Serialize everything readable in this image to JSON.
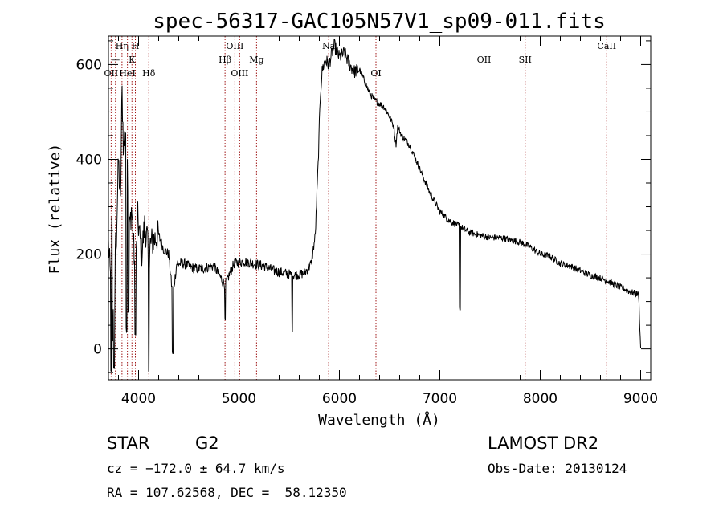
{
  "chart_data": {
    "type": "line",
    "title": "spec-56317-GAC105N57V1_sp09-011.fits",
    "xlabel": "Wavelength (Å)",
    "ylabel": "Flux (relative)",
    "xlim": [
      3700,
      9100
    ],
    "ylim": [
      -65,
      660
    ],
    "x_ticks": [
      4000,
      5000,
      6000,
      7000,
      8000,
      9000
    ],
    "x_tick_labels": [
      "4000",
      "5000",
      "6000",
      "7000",
      "8000",
      "9000"
    ],
    "y_ticks": [
      0,
      200,
      400,
      600
    ],
    "y_tick_labels": [
      "0",
      "200",
      "400",
      "600"
    ],
    "grid": false,
    "line_color": "#000000",
    "marker_color": "#a01818",
    "spectrum_anchors": [
      [
        3700,
        220
      ],
      [
        3720,
        150
      ],
      [
        3740,
        330
      ],
      [
        3760,
        200
      ],
      [
        3780,
        240
      ],
      [
        3800,
        400
      ],
      [
        3820,
        300
      ],
      [
        3835,
        550
      ],
      [
        3850,
        420
      ],
      [
        3870,
        470
      ],
      [
        3890,
        380
      ],
      [
        3910,
        250
      ],
      [
        3930,
        300
      ],
      [
        3950,
        220
      ],
      [
        3970,
        150
      ],
      [
        3990,
        280
      ],
      [
        4010,
        240
      ],
      [
        4030,
        200
      ],
      [
        4060,
        260
      ],
      [
        4090,
        230
      ],
      [
        4102,
        120
      ],
      [
        4115,
        220
      ],
      [
        4150,
        230
      ],
      [
        4200,
        240
      ],
      [
        4250,
        210
      ],
      [
        4300,
        200
      ],
      [
        4340,
        110
      ],
      [
        4380,
        180
      ],
      [
        4450,
        180
      ],
      [
        4550,
        170
      ],
      [
        4650,
        170
      ],
      [
        4750,
        175
      ],
      [
        4861,
        135
      ],
      [
        4950,
        180
      ],
      [
        5050,
        185
      ],
      [
        5150,
        180
      ],
      [
        5250,
        175
      ],
      [
        5350,
        165
      ],
      [
        5450,
        160
      ],
      [
        5550,
        155
      ],
      [
        5650,
        160
      ],
      [
        5720,
        180
      ],
      [
        5760,
        240
      ],
      [
        5790,
        400
      ],
      [
        5810,
        540
      ],
      [
        5830,
        590
      ],
      [
        5860,
        610
      ],
      [
        5893,
        600
      ],
      [
        5950,
        640
      ],
      [
        6000,
        615
      ],
      [
        6050,
        625
      ],
      [
        6100,
        600
      ],
      [
        6150,
        585
      ],
      [
        6200,
        590
      ],
      [
        6250,
        565
      ],
      [
        6300,
        540
      ],
      [
        6350,
        525
      ],
      [
        6450,
        510
      ],
      [
        6500,
        490
      ],
      [
        6540,
        470
      ],
      [
        6563,
        430
      ],
      [
        6580,
        470
      ],
      [
        6620,
        450
      ],
      [
        6700,
        430
      ],
      [
        6800,
        380
      ],
      [
        6900,
        330
      ],
      [
        7000,
        290
      ],
      [
        7100,
        270
      ],
      [
        7190,
        260
      ],
      [
        7300,
        245
      ],
      [
        7400,
        240
      ],
      [
        7500,
        235
      ],
      [
        7600,
        235
      ],
      [
        7700,
        230
      ],
      [
        7800,
        225
      ],
      [
        7900,
        215
      ],
      [
        8000,
        200
      ],
      [
        8100,
        195
      ],
      [
        8200,
        180
      ],
      [
        8300,
        175
      ],
      [
        8400,
        165
      ],
      [
        8500,
        155
      ],
      [
        8600,
        150
      ],
      [
        8700,
        140
      ],
      [
        8800,
        130
      ],
      [
        8900,
        120
      ],
      [
        8980,
        115
      ],
      [
        9000,
        0
      ]
    ],
    "spectrum_dips": [
      [
        3725,
        -50
      ],
      [
        3742,
        20
      ],
      [
        3748,
        80
      ],
      [
        3756,
        -40
      ],
      [
        3762,
        100
      ],
      [
        3880,
        40
      ],
      [
        3900,
        80
      ],
      [
        3968,
        30
      ],
      [
        4102,
        -45
      ],
      [
        4340,
        -10
      ],
      [
        4861,
        60
      ],
      [
        5530,
        40
      ],
      [
        7200,
        85
      ]
    ],
    "lines": [
      {
        "wl": 3727,
        "label": "OII",
        "row": 3
      },
      {
        "wl": 3770,
        "label": "—",
        "row": 2
      },
      {
        "wl": 3835,
        "label": "Hη",
        "row": 1
      },
      {
        "wl": 3889,
        "label": "HeI",
        "row": 3
      },
      {
        "wl": 3934,
        "label": "K",
        "row": 2
      },
      {
        "wl": 3968,
        "label": "H",
        "row": 1
      },
      {
        "wl": 4102,
        "label": "Hδ",
        "row": 3
      },
      {
        "wl": 4861,
        "label": "Hβ",
        "row": 2
      },
      {
        "wl": 4959,
        "label": "OIII",
        "row": 1
      },
      {
        "wl": 5007,
        "label": "OIII",
        "row": 3
      },
      {
        "wl": 5175,
        "label": "Mg",
        "row": 2
      },
      {
        "wl": 5893,
        "label": "Na",
        "row": 1
      },
      {
        "wl": 6364,
        "label": "OI",
        "row": 3
      },
      {
        "wl": 7440,
        "label": "OII",
        "row": 2
      },
      {
        "wl": 7850,
        "label": "SII",
        "row": 2
      },
      {
        "wl": 8662,
        "label": "CaII",
        "row": 1
      }
    ]
  },
  "info": {
    "class_label": "STAR",
    "subclass": "G2",
    "survey": "LAMOST DR2",
    "redshift_line": "cz = −172.0 ± 64.7 km/s",
    "obs_date_line": "Obs-Date: 20130124",
    "coords_line": "RA = 107.62568, DEC =  58.12350"
  }
}
